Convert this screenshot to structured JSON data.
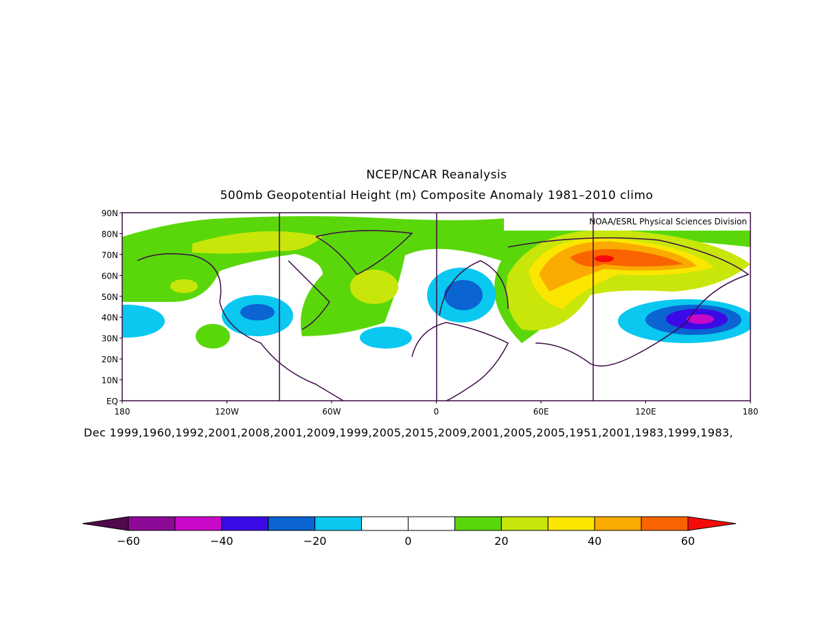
{
  "header": {
    "title": "NCEP/NCAR Reanalysis",
    "subtitle": "500mb Geopotential Height (m) Composite Anomaly 1981–2010 climo"
  },
  "map": {
    "attribution": "NOAA/ESRL Physical Sciences Division",
    "lon_labels": [
      "180",
      "120W",
      "60W",
      "0",
      "60E",
      "120E",
      "180"
    ],
    "lat_labels": [
      "EQ",
      "10N",
      "20N",
      "30N",
      "40N",
      "50N",
      "60N",
      "70N",
      "80N",
      "90N"
    ],
    "caption": "Dec 1999,1960,1992,2001,2008,2001,2009,1999,2005,2015,2009,2001,2005,2005,1951,2001,1983,1999,1983,"
  },
  "colorbar": {
    "labels": [
      "−60",
      "−40",
      "−20",
      "0",
      "20",
      "40",
      "60"
    ],
    "low_arrow_color": "#500a4b",
    "high_arrow_color": "#f50a0a",
    "colors": [
      "#8c0a96",
      "#c80ac8",
      "#3c0ae6",
      "#0a64d2",
      "#0ac8f0",
      "#ffffff",
      "#ffffff",
      "#5ad70a",
      "#c8e60a",
      "#fae600",
      "#faaa00",
      "#fa6400"
    ]
  }
}
